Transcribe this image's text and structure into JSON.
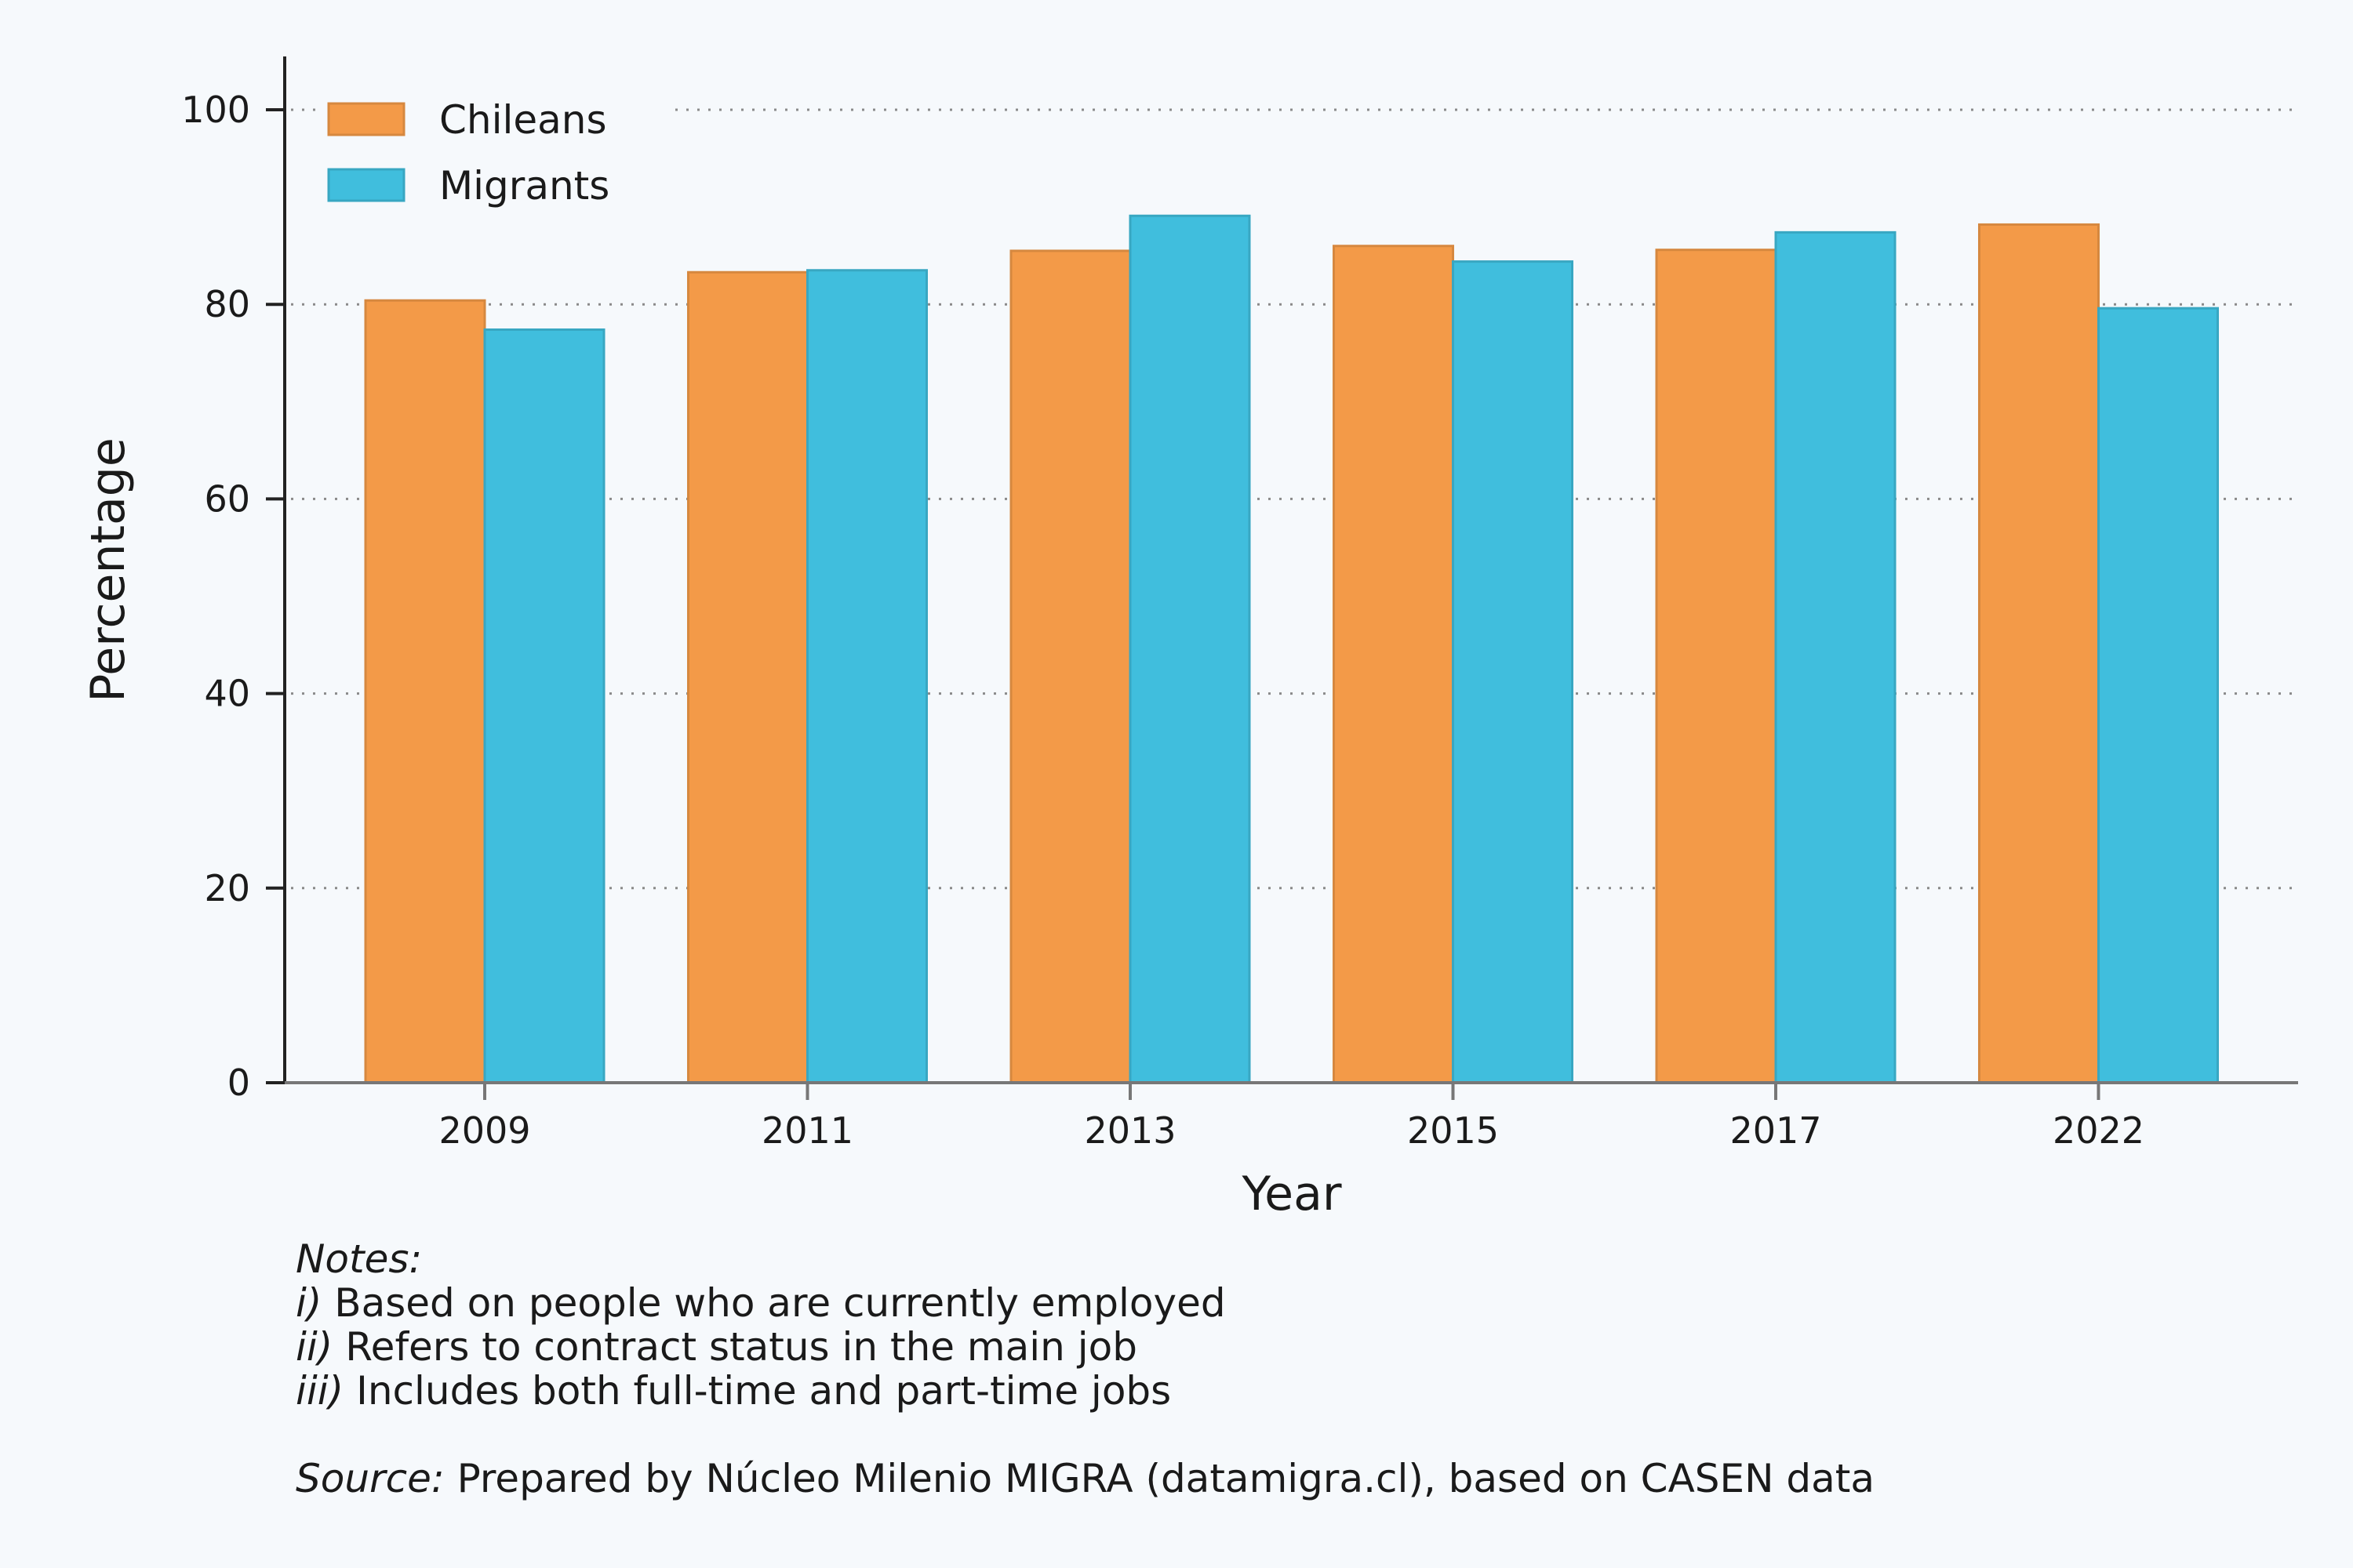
{
  "chart_data": {
    "type": "bar",
    "categories": [
      "2009",
      "2011",
      "2013",
      "2015",
      "2017",
      "2022"
    ],
    "series": [
      {
        "name": "Chileans",
        "values": [
          80.4,
          83.3,
          85.5,
          86.0,
          85.6,
          88.2
        ],
        "color": "#f39a48"
      },
      {
        "name": "Migrants",
        "values": [
          77.4,
          83.5,
          89.1,
          84.4,
          87.4,
          79.6
        ],
        "color": "#40bedd"
      }
    ],
    "title": "",
    "xlabel": "Year",
    "ylabel": "Percentage",
    "ylim": [
      0,
      105
    ],
    "yticks": [
      0,
      20,
      40,
      60,
      80,
      100
    ],
    "grid": true,
    "legend": "top-left"
  },
  "notes": {
    "heading": "Notes:",
    "items": [
      {
        "marker": "i)",
        "text": " Based on people who are currently employed"
      },
      {
        "marker": "ii)",
        "text": " Refers to contract status in the main job"
      },
      {
        "marker": "iii)",
        "text": " Includes both full-time and part-time jobs"
      }
    ],
    "source_label": "Source:",
    "source_text": " Prepared by Núcleo Milenio MIGRA (datamigra.cl), based on CASEN data"
  }
}
